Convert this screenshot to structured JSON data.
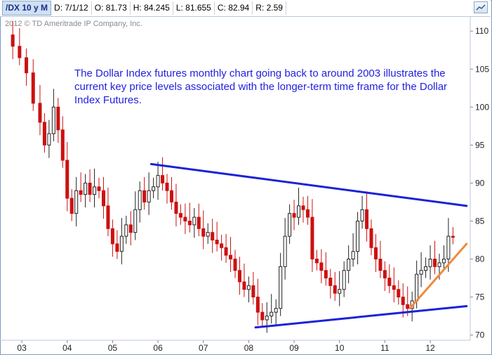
{
  "header": {
    "symbol": "/DX 10 y M",
    "date": "D: 7/1/12",
    "open": "O: 81.73",
    "high": "H: 84.245",
    "low": "L: 81.655",
    "close": "C: 82.94",
    "range": "R: 2.59"
  },
  "copyright": "2012 © TD Ameritrade IP Company, Inc.",
  "annotation": "The Dollar Index futures monthly chart going back to around 2003 illustrates the current key price levels associated with the longer-term time frame for the Dollar Index Futures.",
  "colors": {
    "up": "#222222",
    "down": "#cc1111",
    "trend": "#1b22d8",
    "support": "#f08a3c"
  },
  "chart_data": {
    "type": "candlestick",
    "x_labels": [
      "03",
      "04",
      "05",
      "06",
      "07",
      "08",
      "09",
      "10",
      "11",
      "12"
    ],
    "y_ticks": [
      110,
      105,
      100,
      95,
      90,
      85,
      80,
      75,
      70
    ],
    "ylim": [
      69.5,
      111.5
    ],
    "xlim": [
      2002.55,
      2012.85
    ],
    "close_series": [
      [
        2002.6,
        109.5
      ],
      [
        2002.8,
        108.0
      ],
      [
        2002.95,
        106.5
      ],
      [
        2003.1,
        104.5
      ],
      [
        2003.25,
        100.5
      ],
      [
        2003.4,
        98.0
      ],
      [
        2003.5,
        95.0
      ],
      [
        2003.6,
        96.5
      ],
      [
        2003.7,
        100.0
      ],
      [
        2003.8,
        97.0
      ],
      [
        2003.9,
        93.0
      ],
      [
        2004.0,
        88.0
      ],
      [
        2004.1,
        86.0
      ],
      [
        2004.2,
        89.0
      ],
      [
        2004.3,
        88.5
      ],
      [
        2004.4,
        90.0
      ],
      [
        2004.5,
        88.5
      ],
      [
        2004.6,
        89.5
      ],
      [
        2004.7,
        89.0
      ],
      [
        2004.8,
        87.0
      ],
      [
        2004.9,
        84.0
      ],
      [
        2005.0,
        82.0
      ],
      [
        2005.1,
        81.0
      ],
      [
        2005.2,
        83.0
      ],
      [
        2005.3,
        84.5
      ],
      [
        2005.4,
        83.5
      ],
      [
        2005.5,
        86.5
      ],
      [
        2005.6,
        89.0
      ],
      [
        2005.7,
        87.5
      ],
      [
        2005.8,
        89.0
      ],
      [
        2005.9,
        89.5
      ],
      [
        2006.0,
        91.0
      ],
      [
        2006.1,
        90.0
      ],
      [
        2006.2,
        89.0
      ],
      [
        2006.3,
        87.5
      ],
      [
        2006.4,
        86.0
      ],
      [
        2006.5,
        85.5
      ],
      [
        2006.6,
        85.0
      ],
      [
        2006.7,
        84.5
      ],
      [
        2006.8,
        85.5
      ],
      [
        2006.9,
        84.0
      ],
      [
        2007.0,
        83.0
      ],
      [
        2007.1,
        83.5
      ],
      [
        2007.2,
        82.5
      ],
      [
        2007.3,
        82.0
      ],
      [
        2007.4,
        81.5
      ],
      [
        2007.5,
        80.5
      ],
      [
        2007.6,
        80.0
      ],
      [
        2007.7,
        78.5
      ],
      [
        2007.8,
        77.0
      ],
      [
        2007.9,
        76.0
      ],
      [
        2008.0,
        76.5
      ],
      [
        2008.1,
        75.0
      ],
      [
        2008.2,
        73.0
      ],
      [
        2008.3,
        72.0
      ],
      [
        2008.4,
        72.5
      ],
      [
        2008.5,
        73.0
      ],
      [
        2008.6,
        73.5
      ],
      [
        2008.7,
        79.0
      ],
      [
        2008.8,
        83.0
      ],
      [
        2008.9,
        86.0
      ],
      [
        2009.0,
        85.5
      ],
      [
        2009.1,
        87.0
      ],
      [
        2009.2,
        86.5
      ],
      [
        2009.3,
        85.5
      ],
      [
        2009.4,
        80.0
      ],
      [
        2009.5,
        79.5
      ],
      [
        2009.6,
        78.5
      ],
      [
        2009.7,
        77.5
      ],
      [
        2009.8,
        76.5
      ],
      [
        2009.9,
        75.5
      ],
      [
        2010.0,
        76.0
      ],
      [
        2010.1,
        78.5
      ],
      [
        2010.2,
        80.0
      ],
      [
        2010.3,
        81.0
      ],
      [
        2010.4,
        85.0
      ],
      [
        2010.5,
        86.5
      ],
      [
        2010.6,
        84.0
      ],
      [
        2010.7,
        81.5
      ],
      [
        2010.8,
        80.0
      ],
      [
        2010.9,
        78.5
      ],
      [
        2011.0,
        77.5
      ],
      [
        2011.1,
        76.5
      ],
      [
        2011.2,
        76.0
      ],
      [
        2011.3,
        75.0
      ],
      [
        2011.4,
        74.0
      ],
      [
        2011.5,
        73.5
      ],
      [
        2011.6,
        74.5
      ],
      [
        2011.7,
        78.0
      ],
      [
        2011.8,
        78.5
      ],
      [
        2011.9,
        79.0
      ],
      [
        2012.0,
        80.0
      ],
      [
        2012.1,
        79.0
      ],
      [
        2012.2,
        79.5
      ],
      [
        2012.3,
        80.0
      ],
      [
        2012.4,
        83.0
      ],
      [
        2012.5,
        82.94
      ]
    ],
    "trendlines": [
      {
        "name": "resistance",
        "from": [
          2005.85,
          92.5
        ],
        "to": [
          2012.8,
          87.0
        ],
        "color": "#1b22d8"
      },
      {
        "name": "support",
        "from": [
          2008.15,
          71.0
        ],
        "to": [
          2012.8,
          73.8
        ],
        "color": "#1b22d8"
      },
      {
        "name": "rising-support",
        "from": [
          2011.55,
          73.5
        ],
        "to": [
          2012.8,
          82.0
        ],
        "color": "#f08a3c"
      }
    ]
  }
}
